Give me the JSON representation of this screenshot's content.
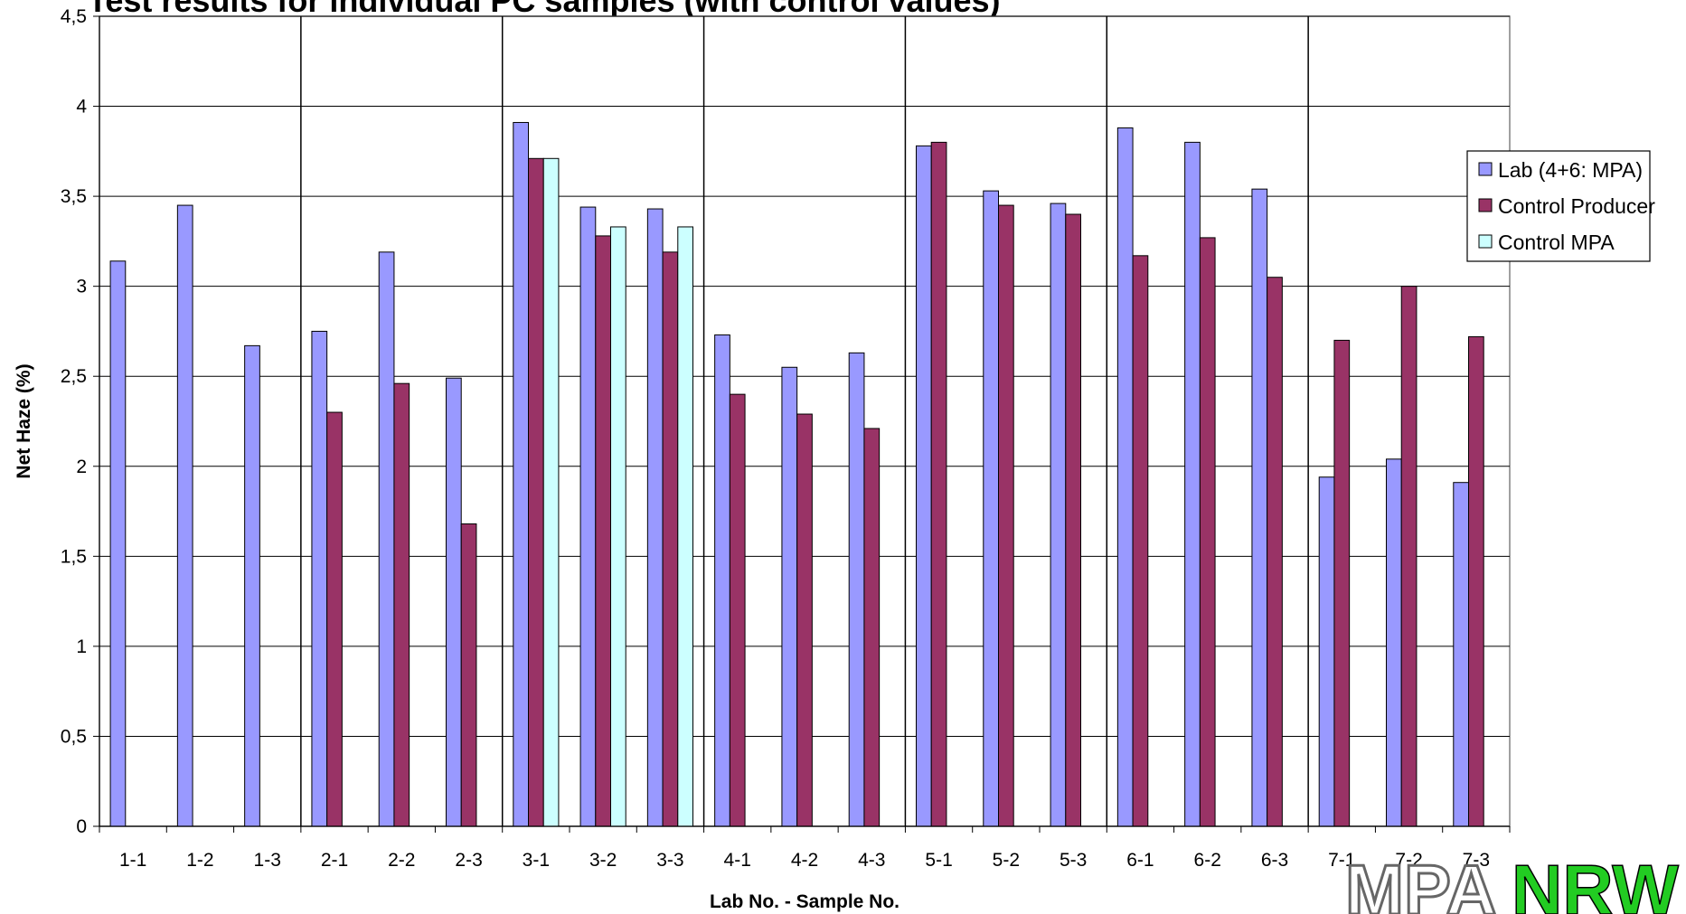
{
  "chart_data": {
    "type": "bar",
    "title": "Test results for individual PC samples (with control values)",
    "xlabel": "Lab No. - Sample No.",
    "ylabel": "Net Haze (%)",
    "ylim": [
      0,
      4.5
    ],
    "yticks": [
      "0",
      "0,5",
      "1",
      "1,5",
      "2",
      "2,5",
      "3",
      "3,5",
      "4",
      "4,5"
    ],
    "grid": true,
    "legend_position": "right",
    "categories": [
      "1-1",
      "1-2",
      "1-3",
      "2-1",
      "2-2",
      "2-3",
      "3-1",
      "3-2",
      "3-3",
      "4-1",
      "4-2",
      "4-3",
      "5-1",
      "5-2",
      "5-3",
      "6-1",
      "6-2",
      "6-3",
      "7-1",
      "7-2",
      "7-3"
    ],
    "series": [
      {
        "name": "Lab (4+6: MPA)",
        "color": "#9999ff",
        "values": [
          3.14,
          3.45,
          2.67,
          2.75,
          3.19,
          2.49,
          3.91,
          3.44,
          3.43,
          2.73,
          2.55,
          2.63,
          3.78,
          3.53,
          3.46,
          3.88,
          3.8,
          3.54,
          1.94,
          2.04,
          1.91
        ]
      },
      {
        "name": "Control Producer",
        "color": "#993366",
        "values": [
          null,
          null,
          null,
          2.3,
          2.46,
          1.68,
          3.71,
          3.28,
          3.19,
          2.4,
          2.29,
          2.21,
          3.8,
          3.45,
          3.4,
          3.17,
          3.27,
          3.05,
          2.7,
          3.0,
          2.72
        ]
      },
      {
        "name": "Control MPA",
        "color": "#ccffff",
        "values": [
          null,
          null,
          null,
          null,
          null,
          null,
          3.71,
          3.33,
          3.33,
          null,
          null,
          null,
          null,
          null,
          null,
          null,
          null,
          null,
          null,
          null,
          null
        ]
      }
    ],
    "group_separators_after": [
      "1-3",
      "2-3",
      "3-3",
      "4-3",
      "5-3",
      "6-3"
    ]
  },
  "logo": {
    "left_text": "MPA",
    "right_text": "NRW",
    "colors": [
      "#22dd22",
      "#ffffff",
      "#ee1111"
    ]
  }
}
